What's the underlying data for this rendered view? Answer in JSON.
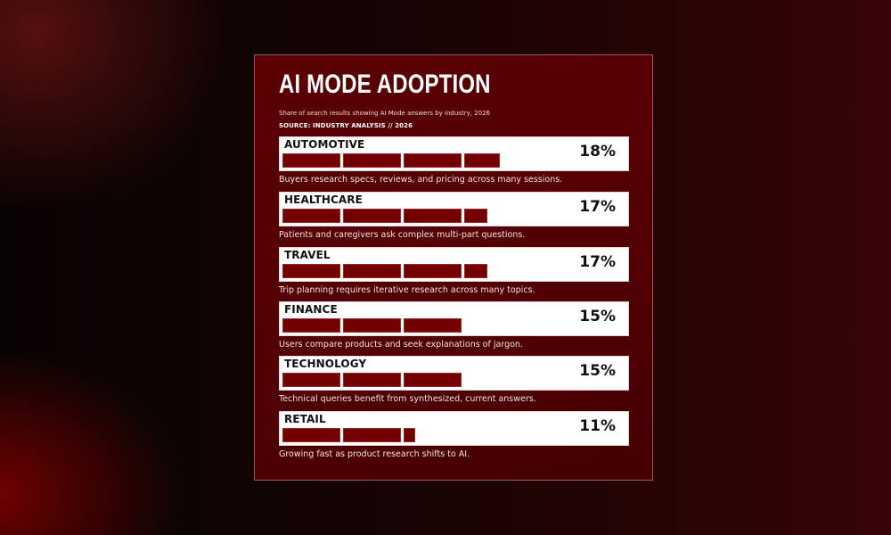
{
  "header": {
    "title": "AI MODE ADOPTION",
    "subtitle": "Share of search results showing AI Mode answers by industry, 2026",
    "source": "SOURCE: INDUSTRY ANALYSIS // 2026"
  },
  "colors": {
    "card_bg": "#560004",
    "bar": "#720003",
    "box": "#ffffff",
    "text_dark": "#111111"
  },
  "rows": [
    {
      "label": "AUTOMOTIVE",
      "value": 18,
      "pct": "18%",
      "desc": "Buyers research specs, reviews, and pricing across many sessions."
    },
    {
      "label": "HEALTHCARE",
      "value": 17,
      "pct": "17%",
      "desc": "Patients and caregivers ask complex multi-part questions."
    },
    {
      "label": "TRAVEL",
      "value": 17,
      "pct": "17%",
      "desc": "Trip planning requires iterative research across many topics."
    },
    {
      "label": "FINANCE",
      "value": 15,
      "pct": "15%",
      "desc": "Users compare products and seek explanations of jargon."
    },
    {
      "label": "TECHNOLOGY",
      "value": 15,
      "pct": "15%",
      "desc": "Technical queries benefit from synthesized, current answers."
    },
    {
      "label": "RETAIL",
      "value": 11,
      "pct": "11%",
      "desc": "Growing fast as product research shifts to AI."
    }
  ],
  "chart_data": {
    "type": "bar",
    "orientation": "horizontal",
    "title": "AI MODE ADOPTION",
    "subtitle": "Share of search results showing AI Mode answers by industry, 2026",
    "source": "SOURCE: INDUSTRY ANALYSIS // 2026",
    "categories": [
      "AUTOMOTIVE",
      "HEALTHCARE",
      "TRAVEL",
      "FINANCE",
      "TECHNOLOGY",
      "RETAIL"
    ],
    "values": [
      18,
      17,
      17,
      15,
      15,
      11
    ],
    "unit": "%",
    "xlabel": "",
    "ylabel": "",
    "grid": false,
    "legend": "none",
    "annotations": [
      "Buyers research specs, reviews, and pricing across many sessions.",
      "Patients and caregivers ask complex multi-part questions.",
      "Trip planning requires iterative research across many topics.",
      "Users compare products and seek explanations of jargon.",
      "Technical queries benefit from synthesized, current answers.",
      "Growing fast as product research shifts to AI."
    ]
  }
}
